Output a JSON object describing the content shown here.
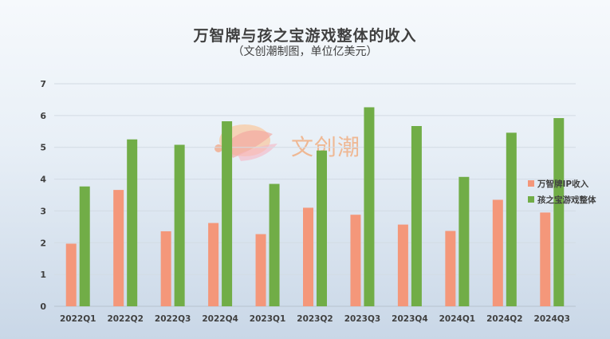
{
  "title": "万智牌与孩之宝游戏整体的收入",
  "subtitle": "（文创潮制图，单位亿美元）",
  "watermark": "文创潮",
  "chart_data": {
    "type": "bar",
    "title": "万智牌与孩之宝游戏整体的收入",
    "subtitle": "（文创潮制图，单位亿美元）",
    "categories": [
      "2022Q1",
      "2022Q2",
      "2022Q3",
      "2022Q4",
      "2023Q1",
      "2023Q2",
      "2023Q3",
      "2023Q4",
      "2024Q1",
      "2024Q2",
      "2024Q3"
    ],
    "series": [
      {
        "name": "万智牌IP收入",
        "color": "#f4977a",
        "values": [
          1.97,
          3.66,
          2.36,
          2.62,
          2.27,
          3.1,
          2.88,
          2.57,
          2.37,
          3.35,
          2.95
        ]
      },
      {
        "name": "孩之宝游戏整体",
        "color": "#71ad47",
        "values": [
          3.77,
          5.25,
          5.08,
          5.82,
          3.85,
          4.9,
          6.26,
          5.67,
          4.07,
          5.46,
          5.92
        ]
      }
    ],
    "ylim": [
      0,
      7
    ],
    "yticks": [
      0,
      1,
      2,
      3,
      4,
      5,
      6,
      7
    ],
    "grid": true,
    "legend_position": "right"
  }
}
